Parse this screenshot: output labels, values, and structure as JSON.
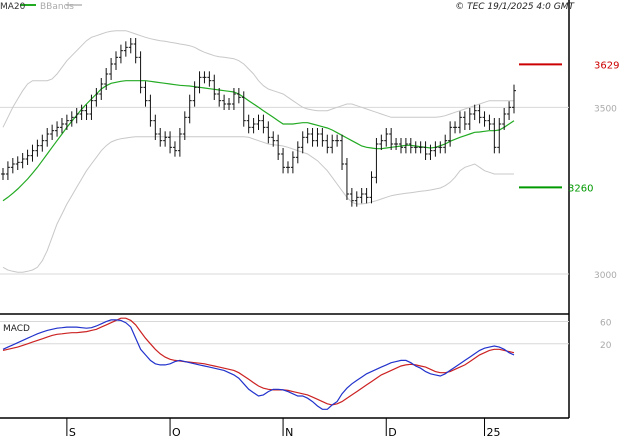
{
  "header": {
    "legend_ma": "MA20",
    "legend_bb": "BBands",
    "copyright": "© TEC 19/1/2025 4:0 GMT"
  },
  "colors": {
    "ma": "#22aa22",
    "bb": "#c8c8c8",
    "bars": "#111111",
    "macd": "#2233cc",
    "signal": "#cc2222",
    "resistance": "#cc0000",
    "support": "#009900",
    "grid": "#d8d8d8",
    "axis": "#000000"
  },
  "chart_data": [
    {
      "type": "bar",
      "title": "Price (OHLC) with MA20 and Bollinger Bands",
      "ylim": [
        2880,
        3780
      ],
      "yticks": [
        3000,
        3500
      ],
      "levels": [
        {
          "name": "resistance",
          "value": 3629,
          "label": "3629"
        },
        {
          "name": "support",
          "value": 3260,
          "label": "3260"
        }
      ],
      "x_labels": [
        {
          "label": "S",
          "index": 13
        },
        {
          "label": "O",
          "index": 34
        },
        {
          "label": "N",
          "index": 57
        },
        {
          "label": "D",
          "index": 78
        },
        {
          "label": "25",
          "index": 98
        }
      ],
      "series": [
        {
          "name": "close",
          "values": [
            3300,
            3320,
            3330,
            3335,
            3345,
            3355,
            3370,
            3385,
            3400,
            3420,
            3430,
            3440,
            3450,
            3460,
            3470,
            3480,
            3490,
            3480,
            3520,
            3540,
            3570,
            3600,
            3630,
            3650,
            3670,
            3680,
            3690,
            3650,
            3560,
            3520,
            3460,
            3420,
            3400,
            3410,
            3380,
            3370,
            3420,
            3470,
            3520,
            3560,
            3590,
            3590,
            3580,
            3540,
            3520,
            3510,
            3510,
            3540,
            3530,
            3460,
            3440,
            3450,
            3460,
            3440,
            3410,
            3400,
            3360,
            3320,
            3320,
            3350,
            3380,
            3410,
            3420,
            3400,
            3420,
            3400,
            3380,
            3400,
            3400,
            3330,
            3240,
            3220,
            3230,
            3240,
            3230,
            3290,
            3390,
            3400,
            3420,
            3390,
            3390,
            3380,
            3390,
            3380,
            3380,
            3380,
            3360,
            3370,
            3380,
            3380,
            3400,
            3440,
            3440,
            3470,
            3450,
            3480,
            3490,
            3470,
            3460,
            3450,
            3380,
            3450,
            3480,
            3500,
            3550
          ]
        },
        {
          "name": "MA20",
          "values": [
            3220,
            3230,
            3242,
            3255,
            3270,
            3285,
            3302,
            3320,
            3340,
            3360,
            3380,
            3400,
            3420,
            3440,
            3458,
            3476,
            3494,
            3510,
            3525,
            3540,
            3555,
            3565,
            3572,
            3575,
            3578,
            3580,
            3580,
            3580,
            3580,
            3580,
            3578,
            3576,
            3574,
            3572,
            3570,
            3568,
            3566,
            3565,
            3564,
            3562,
            3560,
            3558,
            3556,
            3554,
            3552,
            3550,
            3548,
            3546,
            3540,
            3530,
            3520,
            3510,
            3500,
            3490,
            3480,
            3470,
            3460,
            3450,
            3450,
            3450,
            3452,
            3454,
            3454,
            3450,
            3446,
            3442,
            3438,
            3432,
            3424,
            3416,
            3408,
            3400,
            3392,
            3384,
            3380,
            3378,
            3376,
            3376,
            3378,
            3380,
            3382,
            3384,
            3386,
            3386,
            3384,
            3382,
            3380,
            3378,
            3380,
            3385,
            3390,
            3398,
            3404,
            3410,
            3415,
            3420,
            3425,
            3426,
            3428,
            3430,
            3430,
            3432,
            3440,
            3450,
            3460
          ]
        },
        {
          "name": "BB_upper",
          "values": [
            3440,
            3470,
            3500,
            3525,
            3550,
            3570,
            3580,
            3580,
            3580,
            3580,
            3585,
            3600,
            3620,
            3640,
            3655,
            3670,
            3685,
            3700,
            3710,
            3715,
            3720,
            3725,
            3728,
            3730,
            3730,
            3730,
            3725,
            3720,
            3715,
            3710,
            3706,
            3703,
            3700,
            3698,
            3695,
            3693,
            3690,
            3688,
            3685,
            3680,
            3672,
            3665,
            3660,
            3655,
            3652,
            3650,
            3648,
            3646,
            3640,
            3630,
            3615,
            3600,
            3580,
            3565,
            3555,
            3550,
            3545,
            3540,
            3530,
            3520,
            3510,
            3500,
            3495,
            3492,
            3490,
            3490,
            3490,
            3495,
            3500,
            3505,
            3510,
            3510,
            3505,
            3500,
            3495,
            3490,
            3485,
            3480,
            3475,
            3470,
            3470,
            3470,
            3470,
            3470,
            3470,
            3470,
            3470,
            3470,
            3470,
            3472,
            3475,
            3480,
            3485,
            3490,
            3495,
            3500,
            3505,
            3510,
            3515,
            3520,
            3520,
            3520,
            3520,
            3520,
            3520
          ]
        },
        {
          "name": "BB_lower",
          "values": [
            3020,
            3012,
            3008,
            3005,
            3005,
            3008,
            3012,
            3020,
            3040,
            3070,
            3110,
            3150,
            3180,
            3210,
            3235,
            3260,
            3285,
            3310,
            3330,
            3350,
            3370,
            3385,
            3396,
            3402,
            3406,
            3408,
            3410,
            3412,
            3412,
            3412,
            3412,
            3412,
            3412,
            3412,
            3412,
            3412,
            3412,
            3412,
            3412,
            3412,
            3412,
            3412,
            3412,
            3412,
            3412,
            3412,
            3412,
            3412,
            3412,
            3412,
            3410,
            3405,
            3400,
            3395,
            3390,
            3388,
            3386,
            3384,
            3380,
            3375,
            3370,
            3365,
            3360,
            3350,
            3340,
            3325,
            3310,
            3290,
            3270,
            3250,
            3230,
            3215,
            3210,
            3210,
            3212,
            3216,
            3220,
            3225,
            3230,
            3235,
            3238,
            3240,
            3242,
            3244,
            3246,
            3248,
            3250,
            3252,
            3255,
            3258,
            3265,
            3275,
            3290,
            3310,
            3320,
            3325,
            3330,
            3320,
            3310,
            3305,
            3300,
            3300,
            3300,
            3300,
            3300
          ]
        }
      ]
    },
    {
      "type": "line",
      "title": "MACD",
      "label": "MACD",
      "ylim": [
        -110,
        70
      ],
      "yticks": [
        {
          "value": 60,
          "label": "60"
        },
        {
          "value": 20,
          "label": "20"
        }
      ],
      "series": [
        {
          "name": "MACD",
          "values": [
            10,
            14,
            18,
            22,
            26,
            30,
            34,
            38,
            41,
            44,
            46,
            48,
            49,
            50,
            50,
            50,
            49,
            48,
            49,
            52,
            56,
            60,
            63,
            63,
            62,
            58,
            50,
            30,
            10,
            0,
            -10,
            -16,
            -18,
            -18,
            -16,
            -12,
            -10,
            -12,
            -14,
            -16,
            -18,
            -20,
            -22,
            -24,
            -26,
            -28,
            -32,
            -36,
            -42,
            -52,
            -62,
            -68,
            -74,
            -72,
            -66,
            -62,
            -62,
            -63,
            -66,
            -70,
            -74,
            -74,
            -78,
            -84,
            -92,
            -98,
            -98,
            -90,
            -84,
            -70,
            -60,
            -52,
            -46,
            -40,
            -34,
            -30,
            -26,
            -22,
            -18,
            -14,
            -12,
            -10,
            -10,
            -14,
            -20,
            -24,
            -30,
            -34,
            -36,
            -38,
            -34,
            -28,
            -22,
            -16,
            -10,
            -4,
            2,
            8,
            12,
            14,
            16,
            14,
            10,
            4,
            0
          ]
        },
        {
          "name": "Signal",
          "values": [
            8,
            10,
            12,
            14,
            17,
            20,
            23,
            26,
            29,
            32,
            35,
            37,
            38,
            39,
            40,
            40,
            41,
            42,
            44,
            46,
            50,
            54,
            58,
            62,
            66,
            66,
            62,
            54,
            42,
            30,
            20,
            10,
            2,
            -4,
            -8,
            -10,
            -11,
            -12,
            -13,
            -14,
            -15,
            -16,
            -18,
            -20,
            -22,
            -24,
            -26,
            -28,
            -32,
            -38,
            -44,
            -50,
            -56,
            -60,
            -62,
            -63,
            -63,
            -63,
            -64,
            -66,
            -68,
            -70,
            -72,
            -76,
            -80,
            -84,
            -88,
            -90,
            -88,
            -84,
            -78,
            -72,
            -66,
            -60,
            -54,
            -48,
            -42,
            -36,
            -32,
            -28,
            -24,
            -20,
            -18,
            -17,
            -18,
            -20,
            -22,
            -26,
            -30,
            -32,
            -32,
            -30,
            -26,
            -22,
            -18,
            -12,
            -6,
            0,
            4,
            8,
            10,
            10,
            8,
            6,
            4
          ]
        }
      ]
    }
  ]
}
